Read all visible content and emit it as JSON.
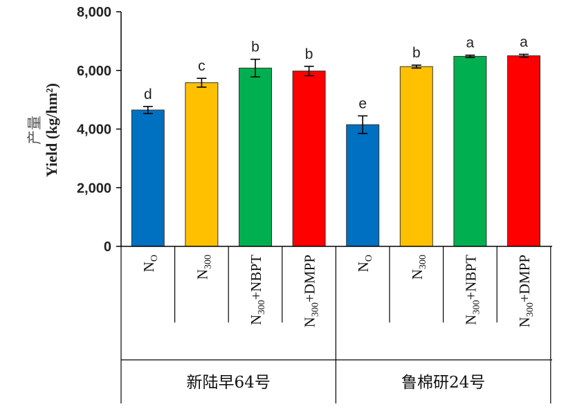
{
  "chart_data": {
    "type": "bar",
    "ylabel_cn": "产量",
    "ylabel": "Yield (kg/hm²)",
    "ylim": [
      0,
      8000
    ],
    "yticks": [
      "0",
      "2,000",
      "4,000",
      "6,000",
      "8,000"
    ],
    "ytick_values": [
      0,
      2000,
      4000,
      6000,
      8000
    ],
    "groups": [
      {
        "label": "新陆早64号",
        "bars": [
          {
            "category": {
              "main": "N",
              "sub": "O",
              "suffix": ""
            },
            "value": 4650,
            "error": 120,
            "letter": "d",
            "color": "#0070C0"
          },
          {
            "category": {
              "main": "N",
              "sub": "300",
              "suffix": ""
            },
            "value": 5580,
            "error": 150,
            "letter": "c",
            "color": "#FFC000"
          },
          {
            "category": {
              "main": "N",
              "sub": "300",
              "suffix": "+NBPT"
            },
            "value": 6080,
            "error": 300,
            "letter": "b",
            "color": "#00B050"
          },
          {
            "category": {
              "main": "N",
              "sub": "300",
              "suffix": "+DMPP"
            },
            "value": 5980,
            "error": 160,
            "letter": "b",
            "color": "#FF0000"
          }
        ]
      },
      {
        "label": "鲁棉研24号",
        "bars": [
          {
            "category": {
              "main": "N",
              "sub": "O",
              "suffix": ""
            },
            "value": 4150,
            "error": 300,
            "letter": "e",
            "color": "#0070C0"
          },
          {
            "category": {
              "main": "N",
              "sub": "300",
              "suffix": ""
            },
            "value": 6130,
            "error": 50,
            "letter": "b",
            "color": "#FFC000"
          },
          {
            "category": {
              "main": "N",
              "sub": "300",
              "suffix": "+NBPT"
            },
            "value": 6480,
            "error": 40,
            "letter": "a",
            "color": "#00B050"
          },
          {
            "category": {
              "main": "N",
              "sub": "300",
              "suffix": "+DMPP"
            },
            "value": 6500,
            "error": 50,
            "letter": "a",
            "color": "#FF0000"
          }
        ]
      }
    ]
  }
}
